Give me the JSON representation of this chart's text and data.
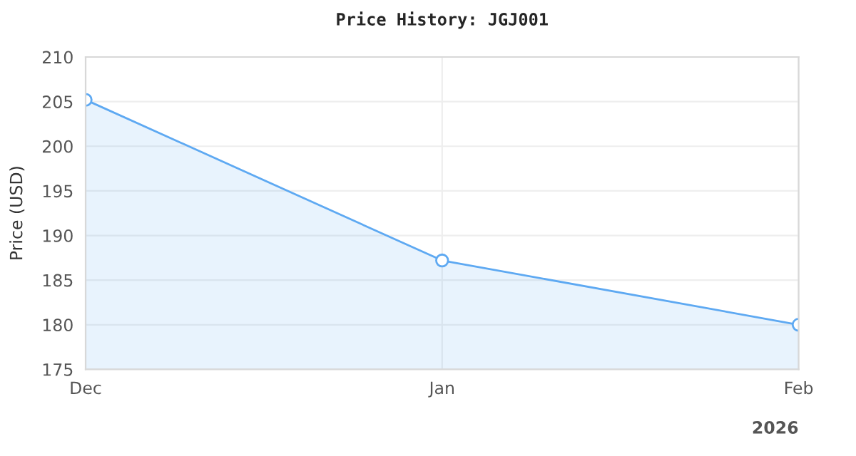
{
  "chart_data": {
    "type": "area",
    "title": "Price History: JGJ001",
    "ylabel": "Price (USD)",
    "x": [
      "2025-12-01",
      "2026-01-01",
      "2026-02-01"
    ],
    "series": [
      {
        "color": "#5ea9f2",
        "values": [
          205.2,
          187.2,
          180.0
        ]
      }
    ],
    "xlim": [
      "2025-12-01",
      "2026-02-01"
    ],
    "xticks": [
      {
        "value": "2025-12-01",
        "label": "Dec"
      },
      {
        "value": "2026-01-01",
        "label": "Jan"
      },
      {
        "value": "2026-02-01",
        "label": "Feb"
      }
    ],
    "ylim": [
      175,
      210
    ],
    "yticks": [
      175,
      180,
      185,
      190,
      195,
      200,
      205,
      210
    ],
    "annotations": [
      "2026"
    ],
    "grid": true,
    "marker": "circle",
    "line_style": "solid"
  }
}
